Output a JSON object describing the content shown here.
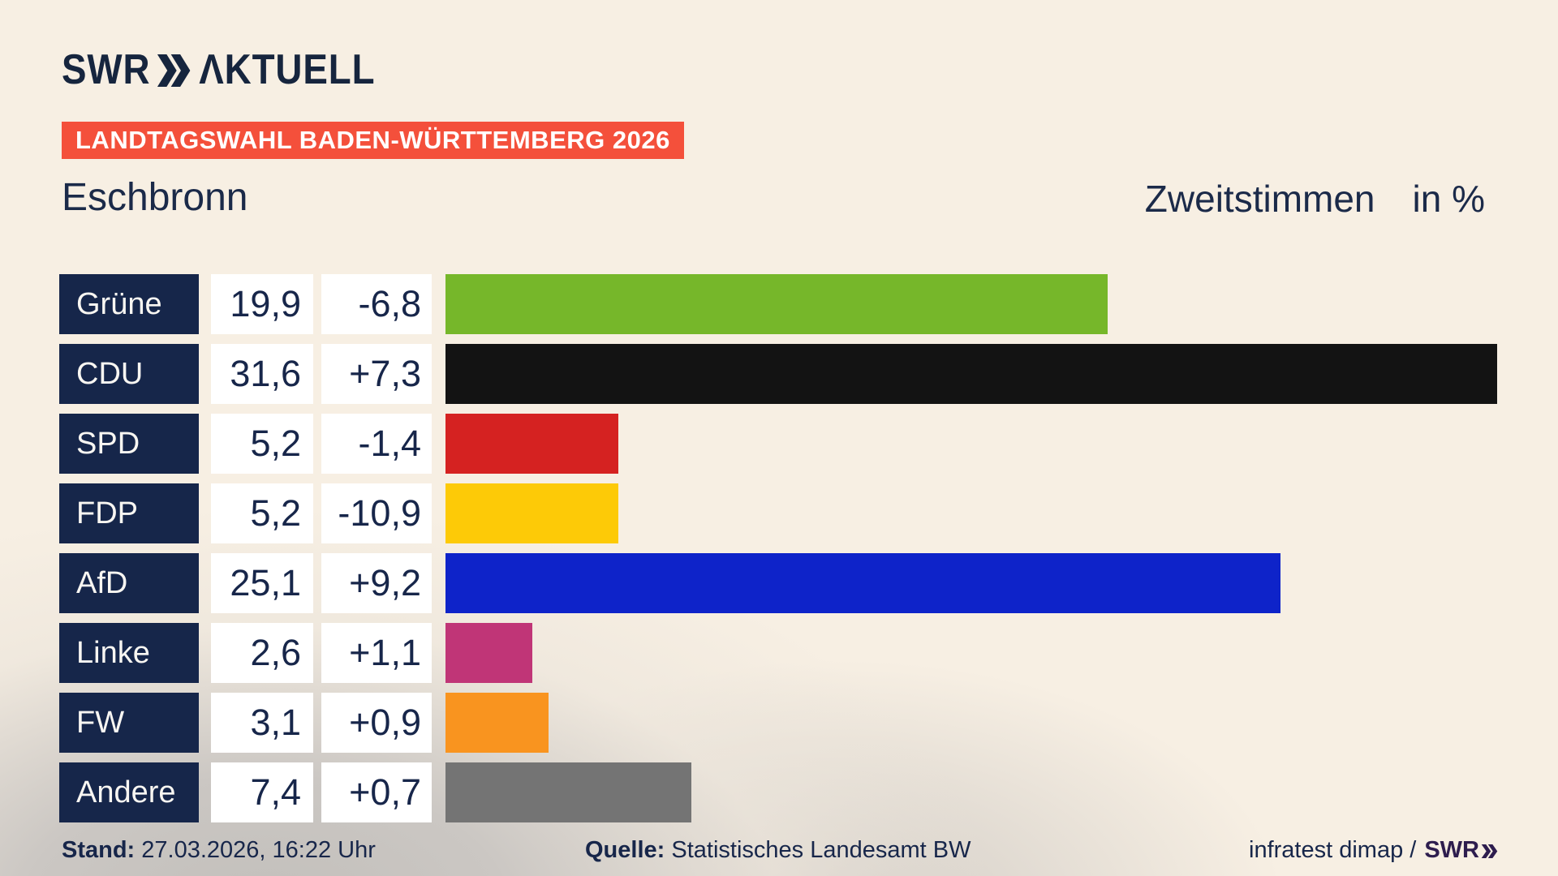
{
  "brand": {
    "swr": "SWR",
    "aktuell": "ΛKTUELL"
  },
  "banner": {
    "label": "LANDTAGSWAHL BADEN-WÜRTTEMBERG 2026",
    "bg": "#f4503b"
  },
  "title": {
    "left": "Eschbronn",
    "right": "Zweitstimmen",
    "right_suffix": "in %"
  },
  "chart_data": {
    "type": "bar",
    "orientation": "horizontal",
    "unit": "%",
    "title": "Eschbronn",
    "series_label": "Zweitstimmen in %",
    "categories": [
      "Grüne",
      "CDU",
      "SPD",
      "FDP",
      "AfD",
      "Linke",
      "FW",
      "Andere"
    ],
    "values": [
      19.9,
      31.6,
      5.2,
      5.2,
      25.1,
      2.6,
      3.1,
      7.4
    ],
    "changes": [
      -6.8,
      7.3,
      -1.4,
      -10.9,
      9.2,
      1.1,
      0.9,
      0.7
    ],
    "xlim": [
      0,
      33.4
    ],
    "rows": [
      {
        "party": "Grüne",
        "value": "19,9",
        "change": "-6,8",
        "value_num": 19.9,
        "color": "#76b72a"
      },
      {
        "party": "CDU",
        "value": "31,6",
        "change": "+7,3",
        "value_num": 31.6,
        "color": "#131313"
      },
      {
        "party": "SPD",
        "value": "5,2",
        "change": "-1,4",
        "value_num": 5.2,
        "color": "#d52221"
      },
      {
        "party": "FDP",
        "value": "5,2",
        "change": "-10,9",
        "value_num": 5.2,
        "color": "#fdca07"
      },
      {
        "party": "AfD",
        "value": "25,1",
        "change": "+9,2",
        "value_num": 25.1,
        "color": "#0e23c9"
      },
      {
        "party": "Linke",
        "value": "2,6",
        "change": "+1,1",
        "value_num": 2.6,
        "color": "#c03577"
      },
      {
        "party": "FW",
        "value": "3,1",
        "change": "+0,9",
        "value_num": 3.1,
        "color": "#f9941f"
      },
      {
        "party": "Andere",
        "value": "7,4",
        "change": "+0,7",
        "value_num": 7.4,
        "color": "#747474"
      }
    ]
  },
  "footer": {
    "stand_label": "Stand:",
    "stand_value": "27.03.2026, 16:22 Uhr",
    "quelle_label": "Quelle:",
    "quelle_value": "Statistisches Landesamt BW",
    "credit": "infratest dimap /",
    "credit_brand": "SWR"
  },
  "colors": {
    "navy": "#16264a",
    "banner_red": "#f4503b",
    "background_cream": "#f7efe3",
    "background_gray": "#c6c3bf",
    "credit_brand_color": "#2e1d4e"
  }
}
